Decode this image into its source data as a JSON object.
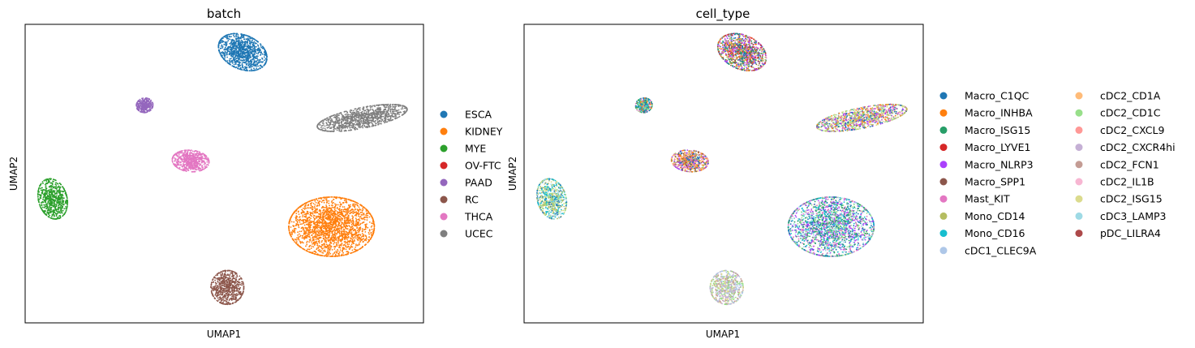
{
  "chart_data": [
    {
      "type": "scatter",
      "title": "batch",
      "xlabel": "UMAP1",
      "ylabel": "UMAP2",
      "xticks": [],
      "yticks": [],
      "grid": false,
      "legend_position": "right",
      "clusters": [
        {
          "category": "ESCA",
          "center": [
            2.8,
            8.5
          ],
          "spread": [
            0.78,
            0.57
          ],
          "angle_deg": -38,
          "points": 1100
        },
        {
          "category": "UCEC",
          "center": [
            6.7,
            5.9
          ],
          "spread": [
            1.35,
            0.36
          ],
          "angle_deg": 14,
          "points": 1100
        },
        {
          "category": "PAAD",
          "center": [
            -0.4,
            6.4
          ],
          "spread": [
            0.24,
            0.26
          ],
          "angle_deg": -20,
          "points": 320
        },
        {
          "category": "THCA",
          "center": [
            1.1,
            4.2
          ],
          "spread": [
            0.54,
            0.38
          ],
          "angle_deg": -8,
          "points": 650
        },
        {
          "category": "MYE",
          "center": [
            -3.4,
            2.7
          ],
          "spread": [
            0.42,
            0.72
          ],
          "angle_deg": 10,
          "points": 700
        },
        {
          "category": "KIDNEY",
          "center": [
            5.7,
            1.6
          ],
          "spread": [
            1.25,
            1.05
          ],
          "angle_deg": 0,
          "points": 2200
        },
        {
          "category": "RC",
          "center": [
            2.3,
            -0.8
          ],
          "spread": [
            0.48,
            0.6
          ],
          "angle_deg": 0,
          "points": 650
        }
      ],
      "legend": [
        {
          "label": "ESCA",
          "color": "#1f77b4"
        },
        {
          "label": "KIDNEY",
          "color": "#ff7f0e"
        },
        {
          "label": "MYE",
          "color": "#2ca02c"
        },
        {
          "label": "OV-FTC",
          "color": "#d62728"
        },
        {
          "label": "PAAD",
          "color": "#9467bd"
        },
        {
          "label": "RC",
          "color": "#8c564b"
        },
        {
          "label": "THCA",
          "color": "#e377c2"
        },
        {
          "label": "UCEC",
          "color": "#7f7f7f"
        }
      ]
    },
    {
      "type": "scatter",
      "title": "cell_type",
      "xlabel": "UMAP1",
      "ylabel": "UMAP2",
      "xticks": [],
      "yticks": [],
      "grid": false,
      "legend_position": "right",
      "clusters": [
        {
          "region": "top",
          "center": [
            2.8,
            8.5
          ],
          "spread": [
            0.78,
            0.57
          ],
          "angle_deg": -38,
          "points": 1100,
          "mix": [
            "Macro_C1QC",
            "Macro_INHBA",
            "Macro_ISG15",
            "Macro_LYVE1",
            "Macro_NLRP3",
            "Macro_SPP1",
            "Mast_KIT",
            "Mono_CD14"
          ]
        },
        {
          "region": "right",
          "center": [
            6.7,
            5.9
          ],
          "spread": [
            1.35,
            0.36
          ],
          "angle_deg": 14,
          "points": 1100,
          "mix": [
            "Mast_KIT",
            "Mono_CD14",
            "Macro_NLRP3",
            "cDC2_ISG15",
            "Macro_C1QC",
            "Macro_INHBA",
            "cDC2_CD1C"
          ]
        },
        {
          "region": "small-left",
          "center": [
            -0.4,
            6.4
          ],
          "spread": [
            0.24,
            0.26
          ],
          "angle_deg": -20,
          "points": 320,
          "mix": [
            "Macro_C1QC",
            "Mast_KIT",
            "Mono_CD16",
            "Macro_ISG15",
            "Macro_INHBA",
            "cDC2_CD1C"
          ]
        },
        {
          "region": "middle",
          "center": [
            1.1,
            4.2
          ],
          "spread": [
            0.54,
            0.38
          ],
          "angle_deg": -8,
          "points": 650,
          "mix": [
            "Macro_INHBA",
            "Macro_C1QC",
            "Macro_SPP1",
            "Mast_KIT",
            "Mono_CD14",
            "Macro_NLRP3",
            "cDC2_CD1A"
          ]
        },
        {
          "region": "left",
          "center": [
            -3.4,
            2.7
          ],
          "spread": [
            0.42,
            0.72
          ],
          "angle_deg": 10,
          "points": 700,
          "mix": [
            "Mono_CD16",
            "Macro_C1QC",
            "cDC2_CD1C",
            "Mono_CD14",
            "cDC2_ISG15",
            "cDC3_LAMP3"
          ]
        },
        {
          "region": "bottom-right",
          "center": [
            5.7,
            1.6
          ],
          "spread": [
            1.25,
            1.05
          ],
          "angle_deg": 0,
          "points": 2200,
          "mix": [
            "Mono_CD16",
            "cDC2_CD1C",
            "Macro_C1QC",
            "Mast_KIT",
            "Macro_ISG15",
            "cDC3_LAMP3",
            "Macro_NLRP3"
          ]
        },
        {
          "region": "bottom",
          "center": [
            2.3,
            -0.8
          ],
          "spread": [
            0.48,
            0.6
          ],
          "angle_deg": 0,
          "points": 650,
          "mix": [
            "cDC2_ISG15",
            "cDC1_CLEC9A",
            "cDC2_CD1C",
            "cDC2_FCN1",
            "cDC2_CXCR4hi"
          ]
        }
      ],
      "legend": [
        {
          "label": "Macro_C1QC",
          "color": "#1f77b4"
        },
        {
          "label": "Macro_INHBA",
          "color": "#ff7f0e"
        },
        {
          "label": "Macro_ISG15",
          "color": "#279e68"
        },
        {
          "label": "Macro_LYVE1",
          "color": "#d62728"
        },
        {
          "label": "Macro_NLRP3",
          "color": "#aa40fc"
        },
        {
          "label": "Macro_SPP1",
          "color": "#8c564b"
        },
        {
          "label": "Mast_KIT",
          "color": "#e377c2"
        },
        {
          "label": "Mono_CD14",
          "color": "#b5bd61"
        },
        {
          "label": "Mono_CD16",
          "color": "#17becf"
        },
        {
          "label": "cDC1_CLEC9A",
          "color": "#aec7e8"
        },
        {
          "label": "cDC2_CD1A",
          "color": "#ffbb78"
        },
        {
          "label": "cDC2_CD1C",
          "color": "#98df8a"
        },
        {
          "label": "cDC2_CXCL9",
          "color": "#ff9896"
        },
        {
          "label": "cDC2_CXCR4hi",
          "color": "#c5b0d5"
        },
        {
          "label": "cDC2_FCN1",
          "color": "#c49c94"
        },
        {
          "label": "cDC2_IL1B",
          "color": "#f7b6d2"
        },
        {
          "label": "cDC2_ISG15",
          "color": "#dbdb8d"
        },
        {
          "label": "cDC3_LAMP3",
          "color": "#9edae5"
        },
        {
          "label": "pDC_LILRA4",
          "color": "#ad494a"
        }
      ]
    }
  ]
}
